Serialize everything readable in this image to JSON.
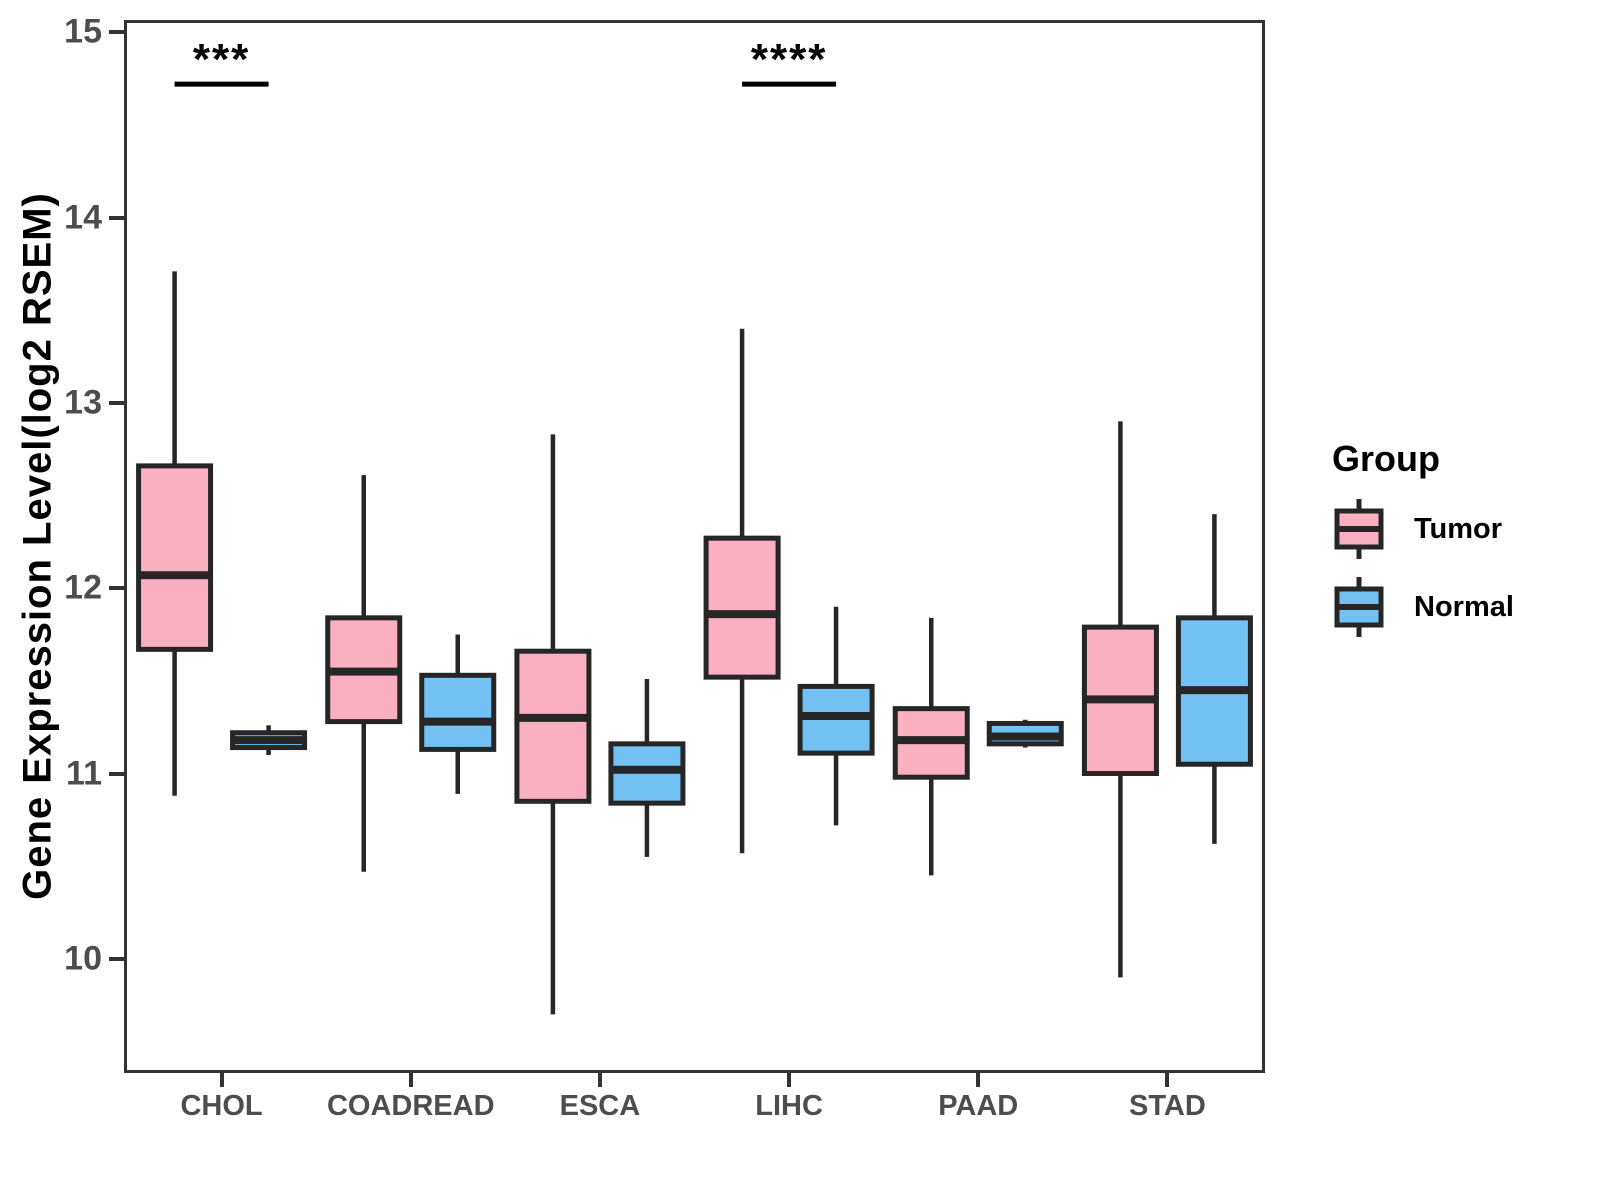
{
  "chart_data": {
    "type": "boxplot",
    "title": "",
    "xlabel": "",
    "ylabel": "Gene Expression Level(log2 RSEM)",
    "categories": [
      "CHOL",
      "COADREAD",
      "ESCA",
      "LIHC",
      "PAAD",
      "STAD"
    ],
    "yticks": [
      10,
      11,
      12,
      13,
      14,
      15
    ],
    "ylim": [
      9.4,
      15.05
    ],
    "grid": "off",
    "legend_position": "right",
    "legend": {
      "title": "Group"
    },
    "series": [
      {
        "name": "Tumor",
        "color": "#FAB0C1",
        "boxes": [
          {
            "category": "CHOL",
            "min": 10.88,
            "q1": 11.67,
            "median": 12.07,
            "q3": 12.66,
            "max": 13.71
          },
          {
            "category": "COADREAD",
            "min": 10.47,
            "q1": 11.28,
            "median": 11.55,
            "q3": 11.84,
            "max": 12.61
          },
          {
            "category": "ESCA",
            "min": 9.7,
            "q1": 10.85,
            "median": 11.3,
            "q3": 11.66,
            "max": 12.83
          },
          {
            "category": "LIHC",
            "min": 10.57,
            "q1": 11.52,
            "median": 11.86,
            "q3": 12.27,
            "max": 13.4
          },
          {
            "category": "PAAD",
            "min": 10.45,
            "q1": 10.98,
            "median": 11.18,
            "q3": 11.35,
            "max": 11.84
          },
          {
            "category": "STAD",
            "min": 9.9,
            "q1": 11.0,
            "median": 11.4,
            "q3": 11.79,
            "max": 12.9
          }
        ]
      },
      {
        "name": "Normal",
        "color": "#72C1F2",
        "boxes": [
          {
            "category": "CHOL",
            "min": 11.1,
            "q1": 11.14,
            "median": 11.18,
            "q3": 11.22,
            "max": 11.26
          },
          {
            "category": "COADREAD",
            "min": 10.89,
            "q1": 11.13,
            "median": 11.28,
            "q3": 11.53,
            "max": 11.75
          },
          {
            "category": "ESCA",
            "min": 10.55,
            "q1": 10.84,
            "median": 11.02,
            "q3": 11.16,
            "max": 11.51
          },
          {
            "category": "LIHC",
            "min": 10.72,
            "q1": 11.11,
            "median": 11.31,
            "q3": 11.47,
            "max": 11.9
          },
          {
            "category": "PAAD",
            "min": 11.14,
            "q1": 11.16,
            "median": 11.2,
            "q3": 11.27,
            "max": 11.29
          },
          {
            "category": "STAD",
            "min": 10.62,
            "q1": 11.05,
            "median": 11.45,
            "q3": 11.84,
            "max": 12.4
          }
        ]
      }
    ],
    "significance": [
      {
        "category": "CHOL",
        "label": "***",
        "bar_y": 14.72
      },
      {
        "category": "LIHC",
        "label": "****",
        "bar_y": 14.72
      }
    ],
    "colors": {
      "box_border": "#262626",
      "axis_line": "#333333",
      "axis_text": "#4d4d4d",
      "annotation": "#000000"
    }
  }
}
